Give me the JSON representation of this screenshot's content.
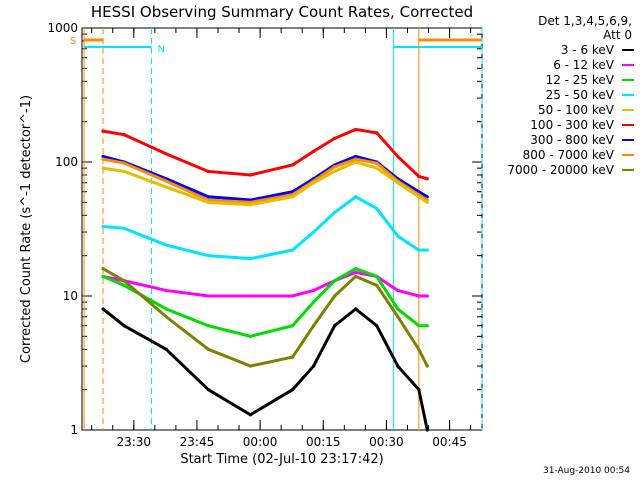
{
  "chart_data": {
    "type": "line",
    "title": "HESSI Observing Summary Count Rates, Corrected",
    "xlabel": "Start Time (02-Jul-10 23:17:42)",
    "ylabel": "Corrected Count Rate (s^-1 detector^-1)",
    "yscale": "log",
    "ylim": [
      1,
      1000
    ],
    "x_units": "minutes after 02-Jul-10 23:17:42",
    "xlim": [
      0,
      95
    ],
    "x_tick_labels": [
      "23:30",
      "23:45",
      "00:00",
      "00:15",
      "00:30",
      "00:45"
    ],
    "y_tick_labels": [
      "1",
      "10",
      "100",
      "1000"
    ],
    "grid": false,
    "legend_position": "outside-right",
    "legend_header": [
      "Det 1,3,4,5,6,9,",
      "Att 0"
    ],
    "x": [
      5,
      10,
      20,
      30,
      40,
      50,
      55,
      60,
      65,
      70,
      75,
      80,
      82
    ],
    "series": [
      {
        "name": "3 - 6 keV",
        "color": "#000000",
        "values": [
          8,
          6,
          4,
          2,
          1.3,
          2,
          3,
          6,
          8,
          6,
          3,
          2,
          1
        ]
      },
      {
        "name": "6 - 12 keV",
        "color": "#ff00ff",
        "values": [
          14,
          13,
          11,
          10,
          10,
          10,
          11,
          13,
          15,
          14,
          11,
          10,
          10
        ]
      },
      {
        "name": "12 - 25 keV",
        "color": "#00dd00",
        "values": [
          14,
          12,
          8,
          6,
          5,
          6,
          9,
          13,
          16,
          14,
          8,
          6,
          6
        ]
      },
      {
        "name": "25 - 50 keV",
        "color": "#00e5ff",
        "values": [
          33,
          32,
          24,
          20,
          19,
          22,
          30,
          42,
          55,
          45,
          28,
          22,
          22
        ]
      },
      {
        "name": "50 - 100 keV",
        "color": "#e0c000",
        "values": [
          90,
          85,
          65,
          50,
          48,
          55,
          70,
          85,
          100,
          90,
          70,
          55,
          50
        ]
      },
      {
        "name": "100 - 300 keV",
        "color": "#ff0000",
        "values": [
          170,
          160,
          115,
          85,
          80,
          95,
          120,
          150,
          175,
          165,
          110,
          78,
          75
        ]
      },
      {
        "name": "300 - 800 keV",
        "color": "#0000ff",
        "values": [
          110,
          100,
          75,
          55,
          52,
          60,
          75,
          95,
          110,
          100,
          75,
          60,
          55
        ]
      },
      {
        "name": "800 - 7000 keV",
        "color": "#ff8c00",
        "values": [
          105,
          98,
          72,
          52,
          50,
          57,
          72,
          92,
          105,
          98,
          72,
          57,
          52
        ]
      },
      {
        "name": "7000 - 20000 keV",
        "color": "#808000",
        "values": [
          16,
          13,
          7,
          4,
          3,
          3.5,
          6,
          10,
          14,
          12,
          7,
          4,
          3
        ]
      }
    ],
    "flags": [
      {
        "label": "S",
        "color": "#ff8c00"
      },
      {
        "label": "N",
        "color": "#00e5ff"
      }
    ]
  },
  "footer_stamp": "31-Aug-2010 00:54"
}
